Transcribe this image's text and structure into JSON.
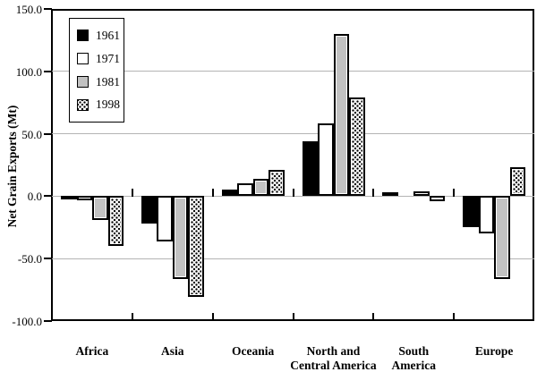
{
  "figure": {
    "ytick_labels": [
      "150.0",
      "100.0",
      "50.0",
      "0.0",
      "-50.0",
      "-100.0"
    ]
  },
  "legend": {
    "items": [
      {
        "label": "1961",
        "fill_key": "1961"
      },
      {
        "label": "1971",
        "fill_key": "1971"
      },
      {
        "label": "1981",
        "fill_key": "1981"
      },
      {
        "label": "1998",
        "fill_key": "1998"
      }
    ]
  },
  "colors": {
    "fills": {
      "1961": "#000000",
      "1971": "#ffffff",
      "1981": "#c2c2c2",
      "1998": "pattern"
    },
    "gridline": "#b4b4b4",
    "axis": "#000000"
  },
  "chart_data": {
    "type": "bar",
    "categories": [
      "Africa",
      "Asia",
      "Oceania",
      "North and\nCentral America",
      "South\nAmerica",
      "Europe"
    ],
    "series": [
      {
        "name": "1961",
        "values": [
          -2,
          -22,
          5,
          44,
          3,
          -25
        ]
      },
      {
        "name": "1971",
        "values": [
          -3,
          -36,
          10,
          58,
          0,
          -30
        ]
      },
      {
        "name": "1981",
        "values": [
          -19,
          -66,
          14,
          130,
          4,
          -66
        ]
      },
      {
        "name": "1998",
        "values": [
          -40,
          -81,
          21,
          79,
          -4,
          23
        ]
      }
    ],
    "title": "",
    "xlabel": "",
    "ylabel": "Net Grain Exports (Mt)",
    "ylim": [
      -100,
      150
    ],
    "yticks": [
      150,
      100,
      50,
      0,
      -50,
      -100
    ],
    "gridlines": [
      100,
      50,
      0,
      -50
    ],
    "grid": true,
    "legend_position": "upper-left"
  }
}
